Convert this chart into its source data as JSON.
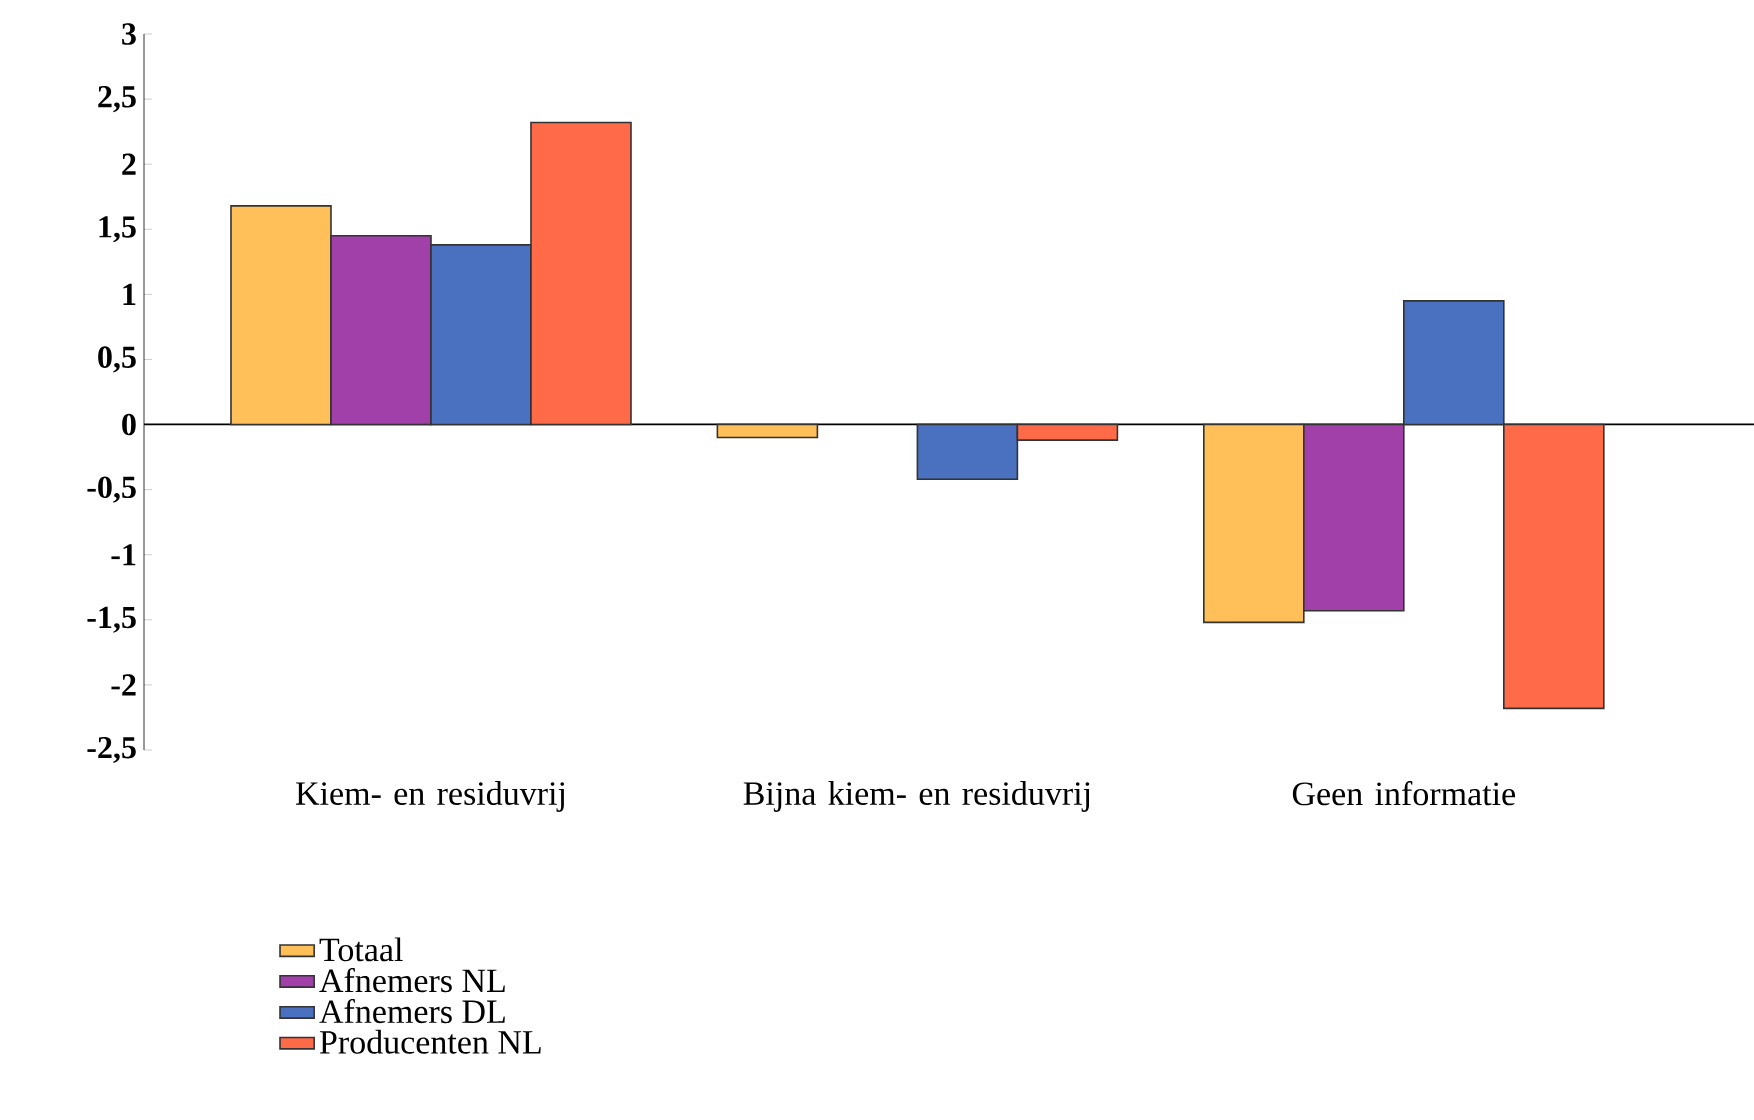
{
  "chart_data": {
    "type": "bar",
    "categories": [
      "Kiem- en residuvrij",
      "Bijna kiem- en residuvrij",
      "Geen informatie"
    ],
    "series": [
      {
        "name": "Totaal",
        "color": "#ffc05a",
        "values": [
          1.68,
          -0.1,
          -1.52
        ]
      },
      {
        "name": "Afnemers NL",
        "color": "#a040a8",
        "values": [
          1.45,
          null,
          -1.43
        ]
      },
      {
        "name": "Afnemers DL",
        "color": "#4a70c0",
        "values": [
          1.38,
          -0.42,
          0.95
        ]
      },
      {
        "name": "Producenten NL",
        "color": "#ff6a48",
        "values": [
          2.32,
          -0.12,
          -2.18
        ]
      }
    ],
    "ylim": [
      -2.5,
      3
    ],
    "yticks": [
      {
        "value": -2.5,
        "label": "-2,5"
      },
      {
        "value": -2,
        "label": "-2"
      },
      {
        "value": -1.5,
        "label": "-1,5"
      },
      {
        "value": -1,
        "label": "-1"
      },
      {
        "value": -0.5,
        "label": "-0,5"
      },
      {
        "value": 0,
        "label": "0"
      },
      {
        "value": 0.5,
        "label": "0,5"
      },
      {
        "value": 1,
        "label": "1"
      },
      {
        "value": 1.5,
        "label": "1,5"
      },
      {
        "value": 2,
        "label": "2"
      },
      {
        "value": 2.5,
        "label": "2,5"
      },
      {
        "value": 3,
        "label": "3"
      }
    ],
    "legend": "bottom left"
  }
}
